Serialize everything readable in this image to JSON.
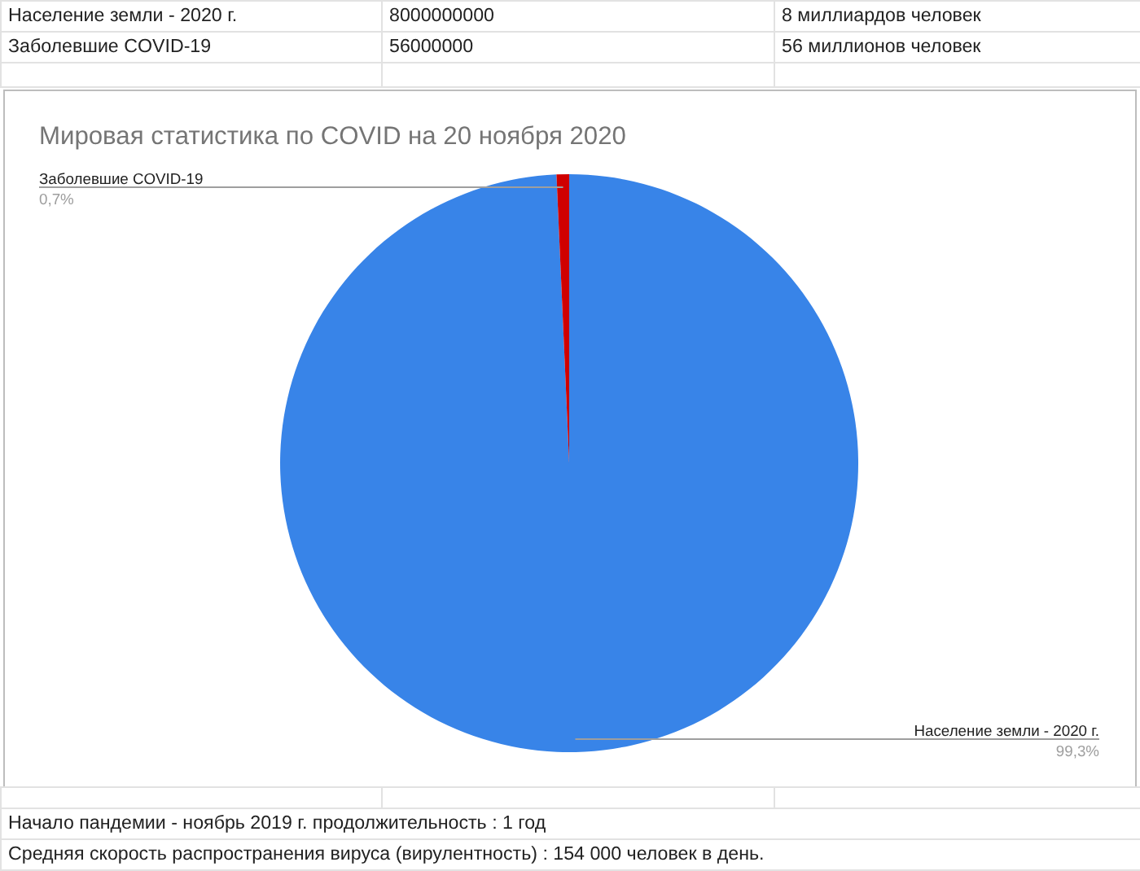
{
  "chart_data": {
    "type": "pie",
    "title": "Мировая статистика по COVID на 20 ноября 2020",
    "categories": [
      "Население земли - 2020 г.",
      "Заболевшие COVID-19"
    ],
    "values": [
      99.3,
      0.7
    ],
    "colors": [
      "#3884e8",
      "#d00000"
    ],
    "value_labels": [
      "99,3%",
      "0,7%"
    ],
    "legend": false,
    "annotations": [
      "8000000000",
      "8 миллиардов человек",
      "56000000",
      "56 миллионов человек",
      "Начало пандемии - ноябрь 2019 г. продолжительность : 1 год",
      "Средняя скорость распространения вируса (вирулентность) : 154 000 человек в день."
    ]
  }
}
